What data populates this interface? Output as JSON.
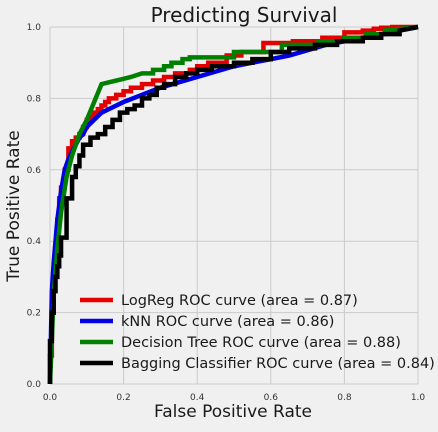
{
  "chart_data": {
    "type": "line",
    "title": "Predicting Survival",
    "xlabel": "False Positive Rate",
    "ylabel": "True Positive Rate",
    "xlim": [
      0,
      1
    ],
    "ylim": [
      0,
      1
    ],
    "xticks": [
      "0.0",
      "0.2",
      "0.4",
      "0.6",
      "0.8",
      "1.0"
    ],
    "yticks": [
      "0.0",
      "0.2",
      "0.4",
      "0.6",
      "0.8",
      "1.0"
    ],
    "grid": true,
    "legend_position": "lower-right",
    "series": [
      {
        "name": "LogReg ROC curve (area = 0.87)",
        "color": "#e50000",
        "x": [
          0.0,
          0.0,
          0.005,
          0.005,
          0.01,
          0.01,
          0.015,
          0.015,
          0.02,
          0.02,
          0.025,
          0.025,
          0.03,
          0.03,
          0.04,
          0.04,
          0.05,
          0.05,
          0.06,
          0.06,
          0.07,
          0.07,
          0.08,
          0.08,
          0.09,
          0.09,
          0.1,
          0.1,
          0.11,
          0.11,
          0.12,
          0.12,
          0.13,
          0.13,
          0.14,
          0.14,
          0.15,
          0.15,
          0.16,
          0.16,
          0.18,
          0.18,
          0.2,
          0.2,
          0.22,
          0.22,
          0.25,
          0.25,
          0.28,
          0.28,
          0.31,
          0.31,
          0.34,
          0.34,
          0.38,
          0.38,
          0.4,
          0.4,
          0.43,
          0.43,
          0.48,
          0.48,
          0.52,
          0.52,
          0.58,
          0.58,
          0.66,
          0.66,
          0.74,
          0.74,
          0.8,
          0.8,
          0.85,
          0.85,
          0.88,
          0.88,
          0.9,
          0.9,
          0.93,
          0.93,
          1.0
        ],
        "y": [
          0.0,
          0.08,
          0.08,
          0.2,
          0.2,
          0.3,
          0.3,
          0.39,
          0.39,
          0.46,
          0.46,
          0.52,
          0.52,
          0.55,
          0.55,
          0.6,
          0.6,
          0.66,
          0.66,
          0.68,
          0.68,
          0.69,
          0.69,
          0.7,
          0.7,
          0.72,
          0.72,
          0.74,
          0.74,
          0.75,
          0.75,
          0.76,
          0.76,
          0.77,
          0.77,
          0.78,
          0.78,
          0.79,
          0.79,
          0.8,
          0.8,
          0.81,
          0.81,
          0.82,
          0.82,
          0.83,
          0.83,
          0.84,
          0.84,
          0.85,
          0.85,
          0.86,
          0.86,
          0.87,
          0.87,
          0.88,
          0.88,
          0.89,
          0.89,
          0.9,
          0.9,
          0.92,
          0.92,
          0.93,
          0.93,
          0.955,
          0.955,
          0.96,
          0.96,
          0.97,
          0.97,
          0.985,
          0.985,
          0.99,
          0.99,
          0.995,
          0.995,
          0.998,
          0.998,
          1.0,
          1.0
        ]
      },
      {
        "name": "kNN ROC curve (area = 0.86)",
        "color": "#0000e5",
        "x": [
          0.0,
          0.005,
          0.01,
          0.015,
          0.02,
          0.025,
          0.03,
          0.035,
          0.04,
          0.05,
          0.06,
          0.07,
          0.08,
          0.09,
          0.1,
          0.12,
          0.14,
          0.16,
          0.18,
          0.2,
          0.25,
          0.3,
          0.35,
          0.4,
          0.45,
          0.5,
          0.55,
          0.6,
          0.65,
          0.7,
          0.75,
          0.8,
          0.85,
          0.9,
          0.95,
          1.0
        ],
        "y": [
          0.0,
          0.26,
          0.34,
          0.4,
          0.46,
          0.5,
          0.54,
          0.57,
          0.6,
          0.63,
          0.65,
          0.67,
          0.69,
          0.7,
          0.72,
          0.74,
          0.76,
          0.77,
          0.78,
          0.79,
          0.81,
          0.83,
          0.845,
          0.86,
          0.875,
          0.89,
          0.9,
          0.91,
          0.92,
          0.935,
          0.95,
          0.96,
          0.97,
          0.98,
          0.99,
          1.0
        ]
      },
      {
        "name": "Decision Tree ROC curve (area = 0.88)",
        "color": "#008000",
        "x": [
          0.0,
          0.01,
          0.02,
          0.03,
          0.045,
          0.06,
          0.08,
          0.1,
          0.12,
          0.14,
          0.16,
          0.18,
          0.2,
          0.22,
          0.25,
          0.28,
          0.28,
          0.31,
          0.31,
          0.33,
          0.33,
          0.36,
          0.36,
          0.38,
          0.38,
          0.5,
          0.5,
          0.63,
          0.63,
          0.73,
          0.73,
          0.8,
          0.8,
          0.86,
          0.86,
          0.91,
          0.91,
          1.0
        ],
        "y": [
          0.0,
          0.25,
          0.38,
          0.48,
          0.58,
          0.64,
          0.7,
          0.74,
          0.79,
          0.84,
          0.845,
          0.85,
          0.855,
          0.86,
          0.87,
          0.87,
          0.88,
          0.88,
          0.89,
          0.89,
          0.9,
          0.9,
          0.91,
          0.91,
          0.915,
          0.915,
          0.93,
          0.93,
          0.95,
          0.95,
          0.96,
          0.96,
          0.97,
          0.97,
          0.98,
          0.98,
          0.99,
          1.0
        ]
      },
      {
        "name": "Bagging Classifier ROC curve (area = 0.84)",
        "color": "#000000",
        "x": [
          0.0,
          0.0,
          0.005,
          0.005,
          0.01,
          0.01,
          0.015,
          0.015,
          0.02,
          0.02,
          0.025,
          0.025,
          0.03,
          0.03,
          0.045,
          0.045,
          0.06,
          0.06,
          0.07,
          0.07,
          0.08,
          0.08,
          0.09,
          0.09,
          0.11,
          0.11,
          0.13,
          0.13,
          0.15,
          0.15,
          0.17,
          0.17,
          0.19,
          0.19,
          0.21,
          0.21,
          0.23,
          0.23,
          0.25,
          0.25,
          0.27,
          0.27,
          0.29,
          0.29,
          0.31,
          0.31,
          0.34,
          0.34,
          0.37,
          0.37,
          0.4,
          0.4,
          0.44,
          0.44,
          0.5,
          0.5,
          0.55,
          0.55,
          0.6,
          0.6,
          0.65,
          0.65,
          0.72,
          0.72,
          0.78,
          0.78,
          0.85,
          0.85,
          0.9,
          0.9,
          0.95,
          0.95,
          1.0
        ],
        "y": [
          0.0,
          0.12,
          0.12,
          0.2,
          0.2,
          0.26,
          0.26,
          0.3,
          0.3,
          0.33,
          0.33,
          0.36,
          0.36,
          0.41,
          0.41,
          0.52,
          0.52,
          0.58,
          0.58,
          0.61,
          0.61,
          0.64,
          0.64,
          0.67,
          0.67,
          0.69,
          0.69,
          0.7,
          0.7,
          0.72,
          0.72,
          0.74,
          0.74,
          0.76,
          0.76,
          0.77,
          0.77,
          0.78,
          0.78,
          0.8,
          0.8,
          0.81,
          0.81,
          0.83,
          0.83,
          0.84,
          0.84,
          0.86,
          0.86,
          0.87,
          0.87,
          0.88,
          0.88,
          0.89,
          0.89,
          0.9,
          0.9,
          0.91,
          0.91,
          0.93,
          0.93,
          0.94,
          0.94,
          0.95,
          0.95,
          0.96,
          0.96,
          0.97,
          0.97,
          0.98,
          0.98,
          0.99,
          1.0
        ]
      }
    ]
  }
}
